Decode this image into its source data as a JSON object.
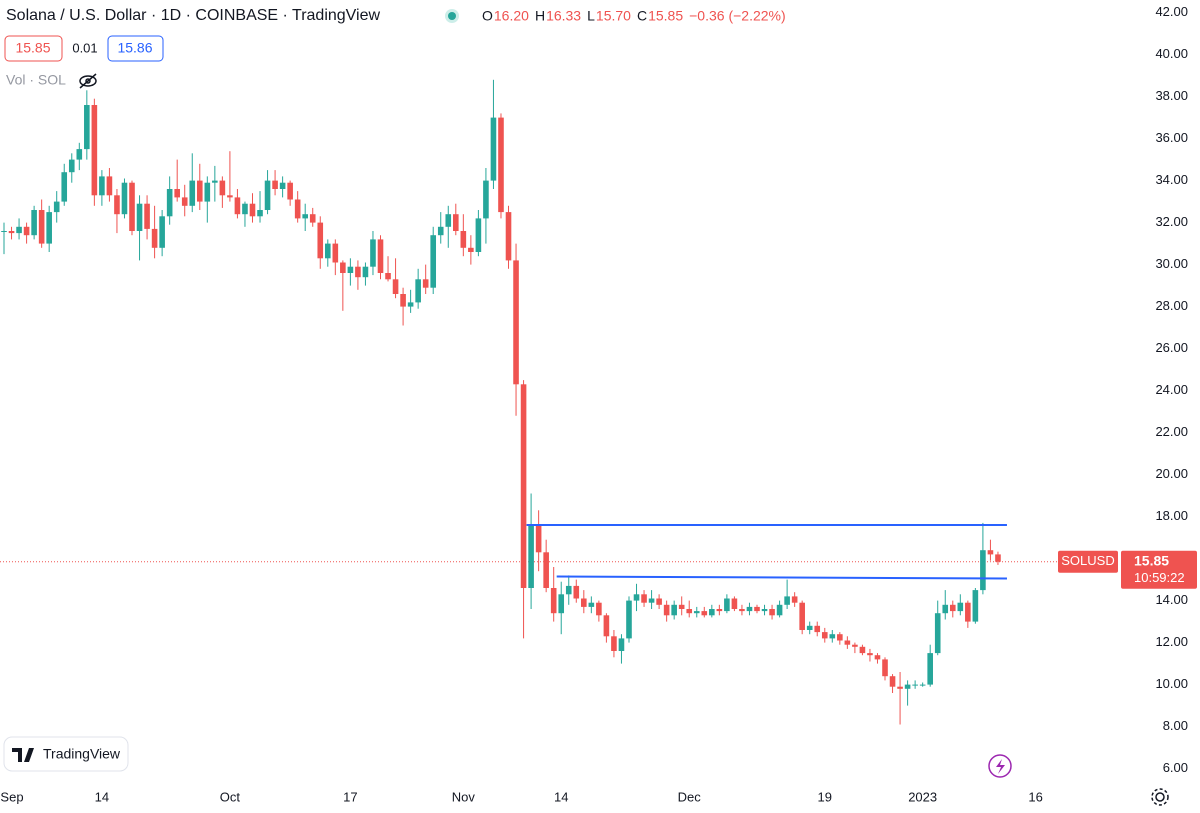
{
  "chart_data": {
    "type": "candlestick",
    "title": "Solana / U.S. Dollar · 1D · COINBASE · TradingView",
    "ohlc_legend": [
      {
        "key": "O",
        "value": "16.20"
      },
      {
        "key": "H",
        "value": "16.33"
      },
      {
        "key": "L",
        "value": "15.70"
      },
      {
        "key": "C",
        "value": "15.85"
      }
    ],
    "change": "−0.36 (−2.22%)",
    "bid": "15.85",
    "spread": "0.01",
    "ask": "15.86",
    "volume_label": "Vol · SOL",
    "brand": "TradingView",
    "symbol": "SOLUSD",
    "last_price": {
      "value": 15.85,
      "label": "15.85"
    },
    "countdown": "10:59:22",
    "up_color": "#26a69a",
    "down_color": "#ef5350",
    "line_color": "#2962ff",
    "categories": [
      "Sep 1",
      "Sep 2",
      "Sep 3",
      "Sep 4",
      "Sep 5",
      "Sep 6",
      "Sep 7",
      "Sep 8",
      "Sep 9",
      "Sep 10",
      "Sep 11",
      "Sep 12",
      "Sep 13",
      "Sep 14",
      "Sep 15",
      "Sep 16",
      "Sep 17",
      "Sep 18",
      "Sep 19",
      "Sep 20",
      "Sep 21",
      "Sep 22",
      "Sep 23",
      "Sep 24",
      "Sep 25",
      "Sep 26",
      "Sep 27",
      "Sep 28",
      "Sep 29",
      "Sep 30",
      "Oct 1",
      "Oct 2",
      "Oct 3",
      "Oct 4",
      "Oct 5",
      "Oct 6",
      "Oct 7",
      "Oct 8",
      "Oct 9",
      "Oct 10",
      "Oct 11",
      "Oct 12",
      "Oct 13",
      "Oct 14",
      "Oct 15",
      "Oct 16",
      "Oct 17",
      "Oct 18",
      "Oct 19",
      "Oct 20",
      "Oct 21",
      "Oct 22",
      "Oct 23",
      "Oct 24",
      "Oct 25",
      "Oct 26",
      "Oct 27",
      "Oct 28",
      "Oct 29",
      "Oct 30",
      "Oct 31",
      "Nov 1",
      "Nov 2",
      "Nov 3",
      "Nov 4",
      "Nov 5",
      "Nov 6",
      "Nov 7",
      "Nov 8",
      "Nov 9",
      "Nov 10",
      "Nov 11",
      "Nov 12",
      "Nov 13",
      "Nov 14",
      "Nov 15",
      "Nov 16",
      "Nov 17",
      "Nov 18",
      "Nov 19",
      "Nov 20",
      "Nov 21",
      "Nov 22",
      "Nov 23",
      "Nov 24",
      "Nov 25",
      "Nov 26",
      "Nov 27",
      "Nov 28",
      "Nov 29",
      "Nov 30",
      "Dec 1",
      "Dec 2",
      "Dec 3",
      "Dec 4",
      "Dec 5",
      "Dec 6",
      "Dec 7",
      "Dec 8",
      "Dec 9",
      "Dec 10",
      "Dec 11",
      "Dec 12",
      "Dec 13",
      "Dec 14",
      "Dec 15",
      "Dec 16",
      "Dec 17",
      "Dec 18",
      "Dec 19",
      "Dec 20",
      "Dec 21",
      "Dec 22",
      "Dec 23",
      "Dec 24",
      "Dec 25",
      "Dec 26",
      "Dec 27",
      "Dec 28",
      "Dec 29",
      "Dec 30",
      "Dec 31",
      "Jan 1",
      "Jan 2",
      "Jan 3",
      "Jan 4",
      "Jan 5",
      "Jan 6",
      "Jan 7",
      "Jan 8",
      "Jan 9",
      "Jan 10",
      "Jan 11",
      "Jan 12",
      "Jan 13",
      "Jan 14",
      "Jan 15",
      "Jan 16"
    ],
    "ohlc": [
      [
        31.6,
        32.0,
        30.5,
        31.6
      ],
      [
        31.6,
        31.8,
        31.2,
        31.5
      ],
      [
        31.5,
        32.2,
        31.2,
        31.8
      ],
      [
        31.8,
        32.0,
        31.0,
        31.4
      ],
      [
        31.4,
        32.8,
        31.2,
        32.6
      ],
      [
        32.6,
        33.1,
        30.8,
        31.0
      ],
      [
        31.0,
        32.8,
        30.6,
        32.5
      ],
      [
        32.5,
        33.5,
        32.0,
        33.0
      ],
      [
        33.0,
        34.8,
        32.8,
        34.4
      ],
      [
        34.4,
        35.3,
        33.9,
        35.0
      ],
      [
        35.0,
        35.8,
        34.5,
        35.5
      ],
      [
        35.5,
        38.3,
        35.0,
        37.6
      ],
      [
        37.6,
        37.9,
        32.8,
        33.3
      ],
      [
        33.3,
        34.5,
        32.8,
        34.2
      ],
      [
        34.2,
        34.6,
        33.0,
        33.3
      ],
      [
        33.3,
        33.6,
        31.5,
        32.4
      ],
      [
        32.4,
        34.1,
        32.2,
        33.9
      ],
      [
        33.9,
        34.0,
        31.4,
        31.6
      ],
      [
        31.6,
        33.3,
        30.2,
        32.9
      ],
      [
        32.9,
        33.3,
        31.2,
        31.7
      ],
      [
        31.7,
        32.8,
        30.3,
        30.8
      ],
      [
        30.8,
        32.6,
        30.4,
        32.3
      ],
      [
        32.3,
        34.2,
        31.9,
        33.6
      ],
      [
        33.6,
        35.0,
        33.0,
        33.2
      ],
      [
        33.2,
        33.8,
        32.3,
        32.8
      ],
      [
        32.8,
        35.3,
        32.5,
        34.0
      ],
      [
        34.0,
        34.8,
        32.6,
        33.0
      ],
      [
        33.0,
        34.2,
        32.0,
        33.9
      ],
      [
        33.9,
        34.7,
        33.0,
        34.0
      ],
      [
        34.0,
        34.2,
        32.7,
        33.3
      ],
      [
        33.3,
        35.4,
        33.0,
        33.2
      ],
      [
        33.2,
        33.6,
        32.2,
        32.4
      ],
      [
        32.4,
        33.0,
        31.8,
        32.9
      ],
      [
        32.9,
        33.4,
        32.0,
        32.3
      ],
      [
        32.3,
        33.5,
        32.0,
        32.6
      ],
      [
        32.6,
        34.5,
        32.4,
        34.0
      ],
      [
        34.0,
        34.5,
        33.3,
        33.6
      ],
      [
        33.6,
        34.2,
        33.2,
        33.9
      ],
      [
        33.9,
        34.0,
        32.8,
        33.1
      ],
      [
        33.1,
        33.5,
        32.0,
        32.2
      ],
      [
        32.2,
        32.9,
        31.6,
        32.4
      ],
      [
        32.4,
        32.7,
        31.8,
        32.0
      ],
      [
        32.0,
        32.3,
        29.8,
        30.3
      ],
      [
        30.3,
        31.2,
        29.9,
        31.0
      ],
      [
        31.0,
        31.2,
        29.5,
        30.1
      ],
      [
        30.1,
        30.2,
        27.8,
        29.6
      ],
      [
        29.6,
        30.3,
        29.0,
        29.9
      ],
      [
        29.9,
        30.2,
        28.8,
        29.4
      ],
      [
        29.4,
        30.1,
        29.0,
        29.9
      ],
      [
        29.9,
        31.6,
        29.5,
        31.2
      ],
      [
        31.2,
        31.4,
        29.3,
        29.6
      ],
      [
        29.6,
        30.4,
        29.2,
        29.3
      ],
      [
        29.3,
        30.3,
        28.4,
        28.6
      ],
      [
        28.6,
        28.9,
        27.1,
        28.0
      ],
      [
        28.0,
        28.8,
        27.7,
        28.2
      ],
      [
        28.2,
        29.8,
        27.9,
        29.3
      ],
      [
        29.3,
        30.0,
        28.6,
        28.9
      ],
      [
        28.9,
        31.8,
        28.6,
        31.4
      ],
      [
        31.4,
        32.5,
        31.0,
        31.8
      ],
      [
        31.8,
        32.8,
        30.8,
        32.4
      ],
      [
        32.4,
        32.9,
        31.4,
        31.6
      ],
      [
        31.6,
        32.4,
        30.4,
        30.8
      ],
      [
        30.8,
        31.4,
        30.0,
        30.6
      ],
      [
        30.6,
        32.6,
        30.4,
        32.2
      ],
      [
        32.2,
        34.6,
        31.0,
        34.0
      ],
      [
        34.0,
        38.8,
        33.6,
        37.0
      ],
      [
        37.0,
        37.2,
        32.2,
        32.5
      ],
      [
        32.5,
        32.8,
        29.8,
        30.2
      ],
      [
        30.2,
        31.0,
        22.8,
        24.3
      ],
      [
        24.3,
        24.5,
        12.2,
        14.6
      ],
      [
        14.6,
        19.1,
        13.6,
        17.6
      ],
      [
        17.6,
        18.3,
        15.4,
        16.3
      ],
      [
        16.3,
        16.9,
        14.4,
        14.6
      ],
      [
        14.6,
        15.6,
        13.0,
        13.4
      ],
      [
        13.4,
        14.9,
        12.4,
        14.3
      ],
      [
        14.3,
        15.2,
        13.8,
        14.7
      ],
      [
        14.7,
        15.0,
        13.9,
        14.1
      ],
      [
        14.1,
        14.5,
        13.4,
        13.7
      ],
      [
        13.7,
        14.2,
        13.4,
        13.9
      ],
      [
        13.9,
        14.0,
        13.0,
        13.3
      ],
      [
        13.3,
        13.4,
        12.0,
        12.3
      ],
      [
        12.3,
        12.6,
        11.3,
        11.6
      ],
      [
        11.6,
        12.4,
        11.0,
        12.2
      ],
      [
        12.2,
        14.2,
        12.0,
        14.0
      ],
      [
        14.0,
        14.8,
        13.5,
        14.3
      ],
      [
        14.3,
        14.5,
        13.7,
        13.9
      ],
      [
        13.9,
        14.5,
        13.6,
        14.1
      ],
      [
        14.1,
        14.3,
        13.6,
        13.8
      ],
      [
        13.8,
        14.0,
        13.0,
        13.3
      ],
      [
        13.3,
        14.0,
        13.1,
        13.8
      ],
      [
        13.8,
        14.2,
        13.3,
        13.6
      ],
      [
        13.6,
        14.0,
        13.2,
        13.4
      ],
      [
        13.4,
        13.7,
        13.2,
        13.5
      ],
      [
        13.5,
        13.7,
        13.2,
        13.3
      ],
      [
        13.3,
        13.8,
        13.2,
        13.6
      ],
      [
        13.6,
        13.8,
        13.3,
        13.5
      ],
      [
        13.5,
        14.3,
        13.4,
        14.1
      ],
      [
        14.1,
        14.2,
        13.5,
        13.6
      ],
      [
        13.6,
        13.8,
        13.3,
        13.5
      ],
      [
        13.5,
        13.9,
        13.3,
        13.7
      ],
      [
        13.7,
        13.8,
        13.4,
        13.5
      ],
      [
        13.5,
        13.8,
        13.3,
        13.6
      ],
      [
        13.6,
        13.8,
        13.1,
        13.3
      ],
      [
        13.3,
        14.0,
        13.2,
        13.8
      ],
      [
        13.8,
        15.0,
        13.6,
        14.2
      ],
      [
        14.2,
        14.4,
        13.7,
        13.9
      ],
      [
        13.9,
        14.0,
        12.4,
        12.6
      ],
      [
        12.6,
        13.0,
        12.4,
        12.8
      ],
      [
        12.8,
        13.0,
        12.3,
        12.5
      ],
      [
        12.5,
        12.7,
        12.0,
        12.2
      ],
      [
        12.2,
        12.6,
        12.0,
        12.4
      ],
      [
        12.4,
        12.5,
        11.9,
        12.1
      ],
      [
        12.1,
        12.3,
        11.7,
        11.9
      ],
      [
        11.9,
        12.0,
        11.5,
        11.8
      ],
      [
        11.8,
        11.9,
        11.4,
        11.5
      ],
      [
        11.5,
        11.7,
        11.1,
        11.4
      ],
      [
        11.4,
        11.5,
        11.0,
        11.2
      ],
      [
        11.2,
        11.3,
        10.2,
        10.4
      ],
      [
        10.4,
        10.5,
        9.6,
        9.9
      ],
      [
        9.9,
        10.6,
        8.1,
        9.8
      ],
      [
        9.8,
        10.2,
        9.0,
        10.0
      ],
      [
        10.0,
        10.2,
        9.8,
        10.0
      ],
      [
        10.0,
        10.1,
        9.9,
        10.0
      ],
      [
        10.0,
        11.9,
        9.9,
        11.5
      ],
      [
        11.5,
        14.0,
        11.4,
        13.4
      ],
      [
        13.4,
        14.5,
        13.1,
        13.8
      ],
      [
        13.8,
        14.0,
        13.2,
        13.5
      ],
      [
        13.5,
        14.3,
        13.3,
        13.9
      ],
      [
        13.9,
        14.0,
        12.7,
        13.0
      ],
      [
        13.0,
        14.6,
        12.9,
        14.5
      ],
      [
        14.5,
        17.7,
        14.3,
        16.4
      ],
      [
        16.4,
        16.9,
        15.9,
        16.2
      ],
      [
        16.2,
        16.33,
        15.7,
        15.85
      ],
      null,
      null,
      null,
      null,
      null
    ],
    "lines": [
      {
        "from": "Nov 9",
        "to": "Jan 11",
        "start": 17.6,
        "end": 17.6
      },
      {
        "from": "Nov 13",
        "to": "Jan 11",
        "start": 15.15,
        "end": 15.05
      }
    ],
    "ylim": [
      5.6,
      42.6
    ],
    "yticks": [
      {
        "value": 42,
        "label": "42.00"
      },
      {
        "value": 40,
        "label": "40.00"
      },
      {
        "value": 38,
        "label": "38.00"
      },
      {
        "value": 36,
        "label": "36.00"
      },
      {
        "value": 34,
        "label": "34.00"
      },
      {
        "value": 32,
        "label": "32.00"
      },
      {
        "value": 30,
        "label": "30.00"
      },
      {
        "value": 28,
        "label": "28.00"
      },
      {
        "value": 26,
        "label": "26.00"
      },
      {
        "value": 24,
        "label": "24.00"
      },
      {
        "value": 22,
        "label": "22.00"
      },
      {
        "value": 20,
        "label": "20.00"
      },
      {
        "value": 18,
        "label": "18.00"
      },
      {
        "value": 16,
        "label": "16.00"
      },
      {
        "value": 14,
        "label": "14.00"
      },
      {
        "value": 12,
        "label": "12.00"
      },
      {
        "value": 10,
        "label": "10.00"
      },
      {
        "value": 8,
        "label": "8.00"
      },
      {
        "value": 6,
        "label": "6.00"
      }
    ],
    "xticks": [
      {
        "value": "Sep 1",
        "label": "Sep"
      },
      {
        "value": "Sep 14",
        "label": "14"
      },
      {
        "value": "Oct 1",
        "label": "Oct"
      },
      {
        "value": "Oct 17",
        "label": "17"
      },
      {
        "value": "Nov 1",
        "label": "Nov"
      },
      {
        "value": "Nov 14",
        "label": "14"
      },
      {
        "value": "Dec 1",
        "label": "Dec"
      },
      {
        "value": "Dec 19",
        "label": "19"
      },
      {
        "value": "Jan 1",
        "label": "2023"
      },
      {
        "value": "Jan 16",
        "label": "16"
      }
    ]
  }
}
